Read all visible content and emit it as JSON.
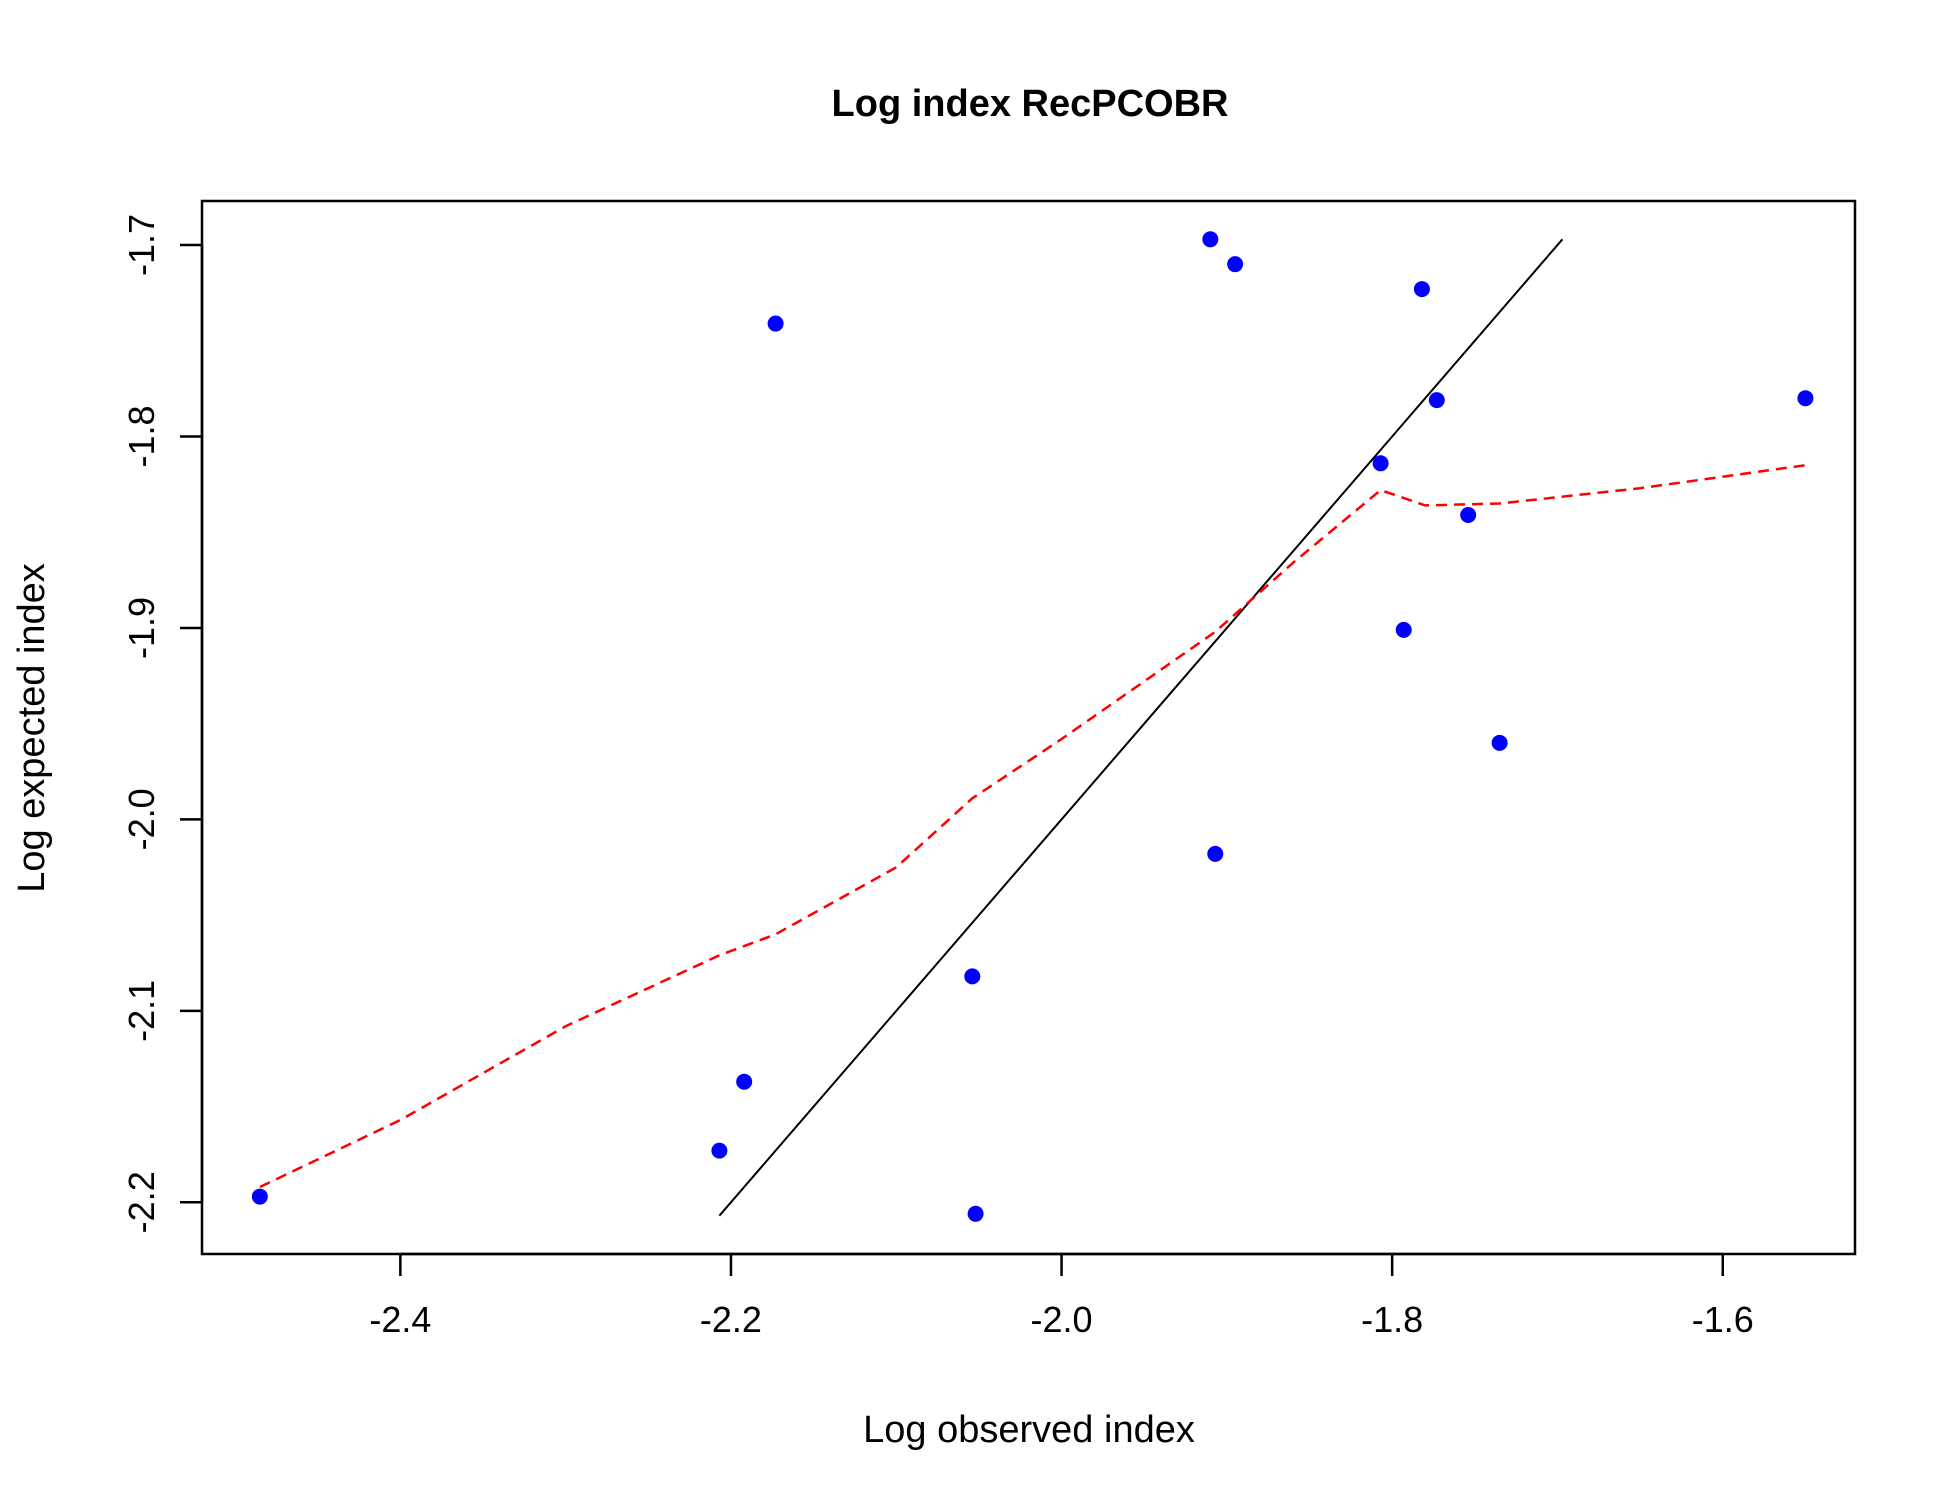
{
  "chart_data": {
    "type": "scatter",
    "title": "Log index RecPCOBR",
    "xlabel": "Log observed index",
    "ylabel": "Log expected index",
    "xlim": [
      -2.52,
      -1.52
    ],
    "ylim": [
      -2.227,
      -1.677
    ],
    "xticks": [
      -2.4,
      -2.2,
      -2.0,
      -1.8,
      -1.6
    ],
    "xtick_labels": [
      "-2.4",
      "-2.2",
      "-2.0",
      "-1.8",
      "-1.6"
    ],
    "yticks": [
      -2.2,
      -2.1,
      -2.0,
      -1.9,
      -1.8,
      -1.7
    ],
    "ytick_labels": [
      "-2.2",
      "-2.1",
      "-2.0",
      "-1.9",
      "-1.8",
      "-1.7"
    ],
    "grid": false,
    "points": [
      {
        "x": -2.485,
        "y": -2.197
      },
      {
        "x": -2.207,
        "y": -2.173
      },
      {
        "x": -2.192,
        "y": -2.137
      },
      {
        "x": -2.173,
        "y": -1.741
      },
      {
        "x": -2.054,
        "y": -2.082
      },
      {
        "x": -2.052,
        "y": -2.206
      },
      {
        "x": -1.91,
        "y": -1.697
      },
      {
        "x": -1.907,
        "y": -2.018
      },
      {
        "x": -1.895,
        "y": -1.71
      },
      {
        "x": -1.807,
        "y": -1.814
      },
      {
        "x": -1.793,
        "y": -1.901
      },
      {
        "x": -1.782,
        "y": -1.723
      },
      {
        "x": -1.773,
        "y": -1.781
      },
      {
        "x": -1.754,
        "y": -1.841
      },
      {
        "x": -1.735,
        "y": -1.96
      },
      {
        "x": -1.55,
        "y": -1.78
      }
    ],
    "point_color": "#0000ff",
    "reference_line": {
      "x": [
        -2.207,
        -1.697
      ],
      "y": [
        -2.207,
        -1.697
      ],
      "color": "#000000",
      "style": "solid"
    },
    "smooth_line": {
      "x": [
        -2.485,
        -2.4,
        -2.3,
        -2.207,
        -2.173,
        -2.1,
        -2.054,
        -2.0,
        -1.907,
        -1.86,
        -1.807,
        -1.78,
        -1.735,
        -1.65,
        -1.55
      ],
      "y": [
        -2.192,
        -2.157,
        -2.108,
        -2.071,
        -2.06,
        -2.025,
        -1.989,
        -1.958,
        -1.902,
        -1.866,
        -1.828,
        -1.836,
        -1.835,
        -1.827,
        -1.815
      ],
      "color": "#ff0000",
      "style": "dashed"
    }
  }
}
